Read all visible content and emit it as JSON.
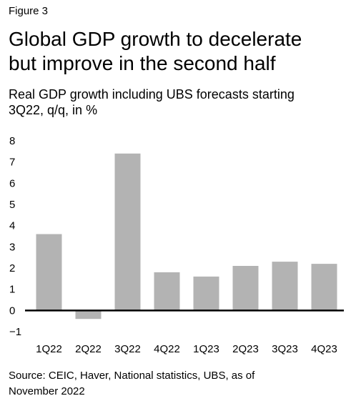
{
  "figure_label": "Figure 3",
  "title_line1": "Global GDP growth to decelerate",
  "title_line2": "but improve in the second half",
  "subtitle_line1": "Real GDP growth including UBS forecasts starting",
  "subtitle_line2": "3Q22, q/q, in %",
  "source_line1": "Source: CEIC, Haver, National statistics, UBS, as of",
  "source_line2": "November 2022",
  "colors": {
    "bar": "#b3b3b3",
    "zero_line": "#000000"
  },
  "chart_data": {
    "type": "bar",
    "title": "Global GDP growth to decelerate but improve in the second half",
    "subtitle": "Real GDP growth including UBS forecasts starting 3Q22, q/q, in %",
    "xlabel": "",
    "ylabel": "",
    "categories": [
      "1Q22",
      "2Q22",
      "3Q22",
      "4Q22",
      "1Q23",
      "2Q23",
      "3Q23",
      "4Q23"
    ],
    "values": [
      3.6,
      -0.4,
      7.4,
      1.8,
      1.6,
      2.1,
      2.3,
      2.2
    ],
    "ylim": [
      -1,
      8
    ],
    "yticks": [
      "−1",
      "0",
      "1",
      "2",
      "3",
      "4",
      "5",
      "6",
      "7",
      "8"
    ],
    "grid": false,
    "legend": "none"
  }
}
